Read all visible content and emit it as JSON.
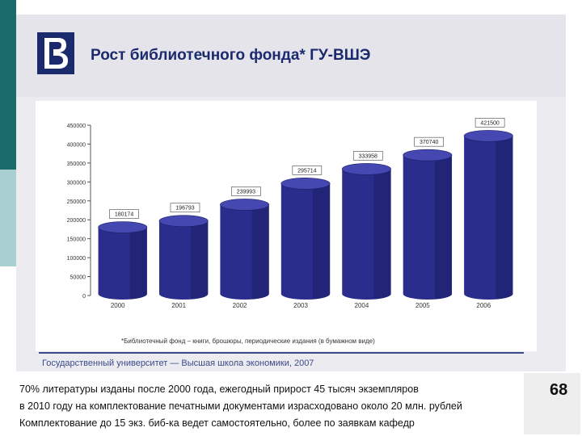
{
  "title": "Рост библиотечного фонда* ГУ-ВШЭ",
  "footnote": "*Библиотечный фонд – книги, брошюры, периодические издания (в бумажном виде)",
  "university": "Государственный университет — Высшая школа экономики, 2007",
  "bottom_lines": [
    "70% литературы изданы после 2000 года, ежегодный прирост 45 тысяч экземпляров",
    "в 2010 году на комплектование печатными документами израсходовано около 20 млн. рублей",
    "Комплектование до 15 экз. биб-ка ведет самостоятельно, более по заявкам кафедр"
  ],
  "page_number": "68",
  "colors": {
    "bar": "#2a2d8c",
    "bar_dark": "#1c1e66",
    "bar_top": "#4448b0",
    "title": "#1b2a6d"
  },
  "chart_data": {
    "type": "bar",
    "categories": [
      "2000",
      "2001",
      "2002",
      "2003",
      "2004",
      "2005",
      "2006"
    ],
    "values": [
      180174,
      196793,
      239993,
      295714,
      333958,
      370740,
      421500
    ],
    "ylim": [
      0,
      450000
    ],
    "yticks": [
      0,
      50000,
      100000,
      150000,
      200000,
      250000,
      300000,
      350000,
      400000,
      450000
    ],
    "ytick_labels": [
      "0",
      "50000",
      "100000",
      "150000",
      "200000",
      "250000",
      "300000",
      "350000",
      "400000",
      "450000"
    ],
    "data_labels": [
      "180174",
      "196793",
      "239993",
      "295714",
      "333958",
      "370740",
      "421500"
    ],
    "title": "",
    "xlabel": "",
    "ylabel": "",
    "grid": false
  }
}
